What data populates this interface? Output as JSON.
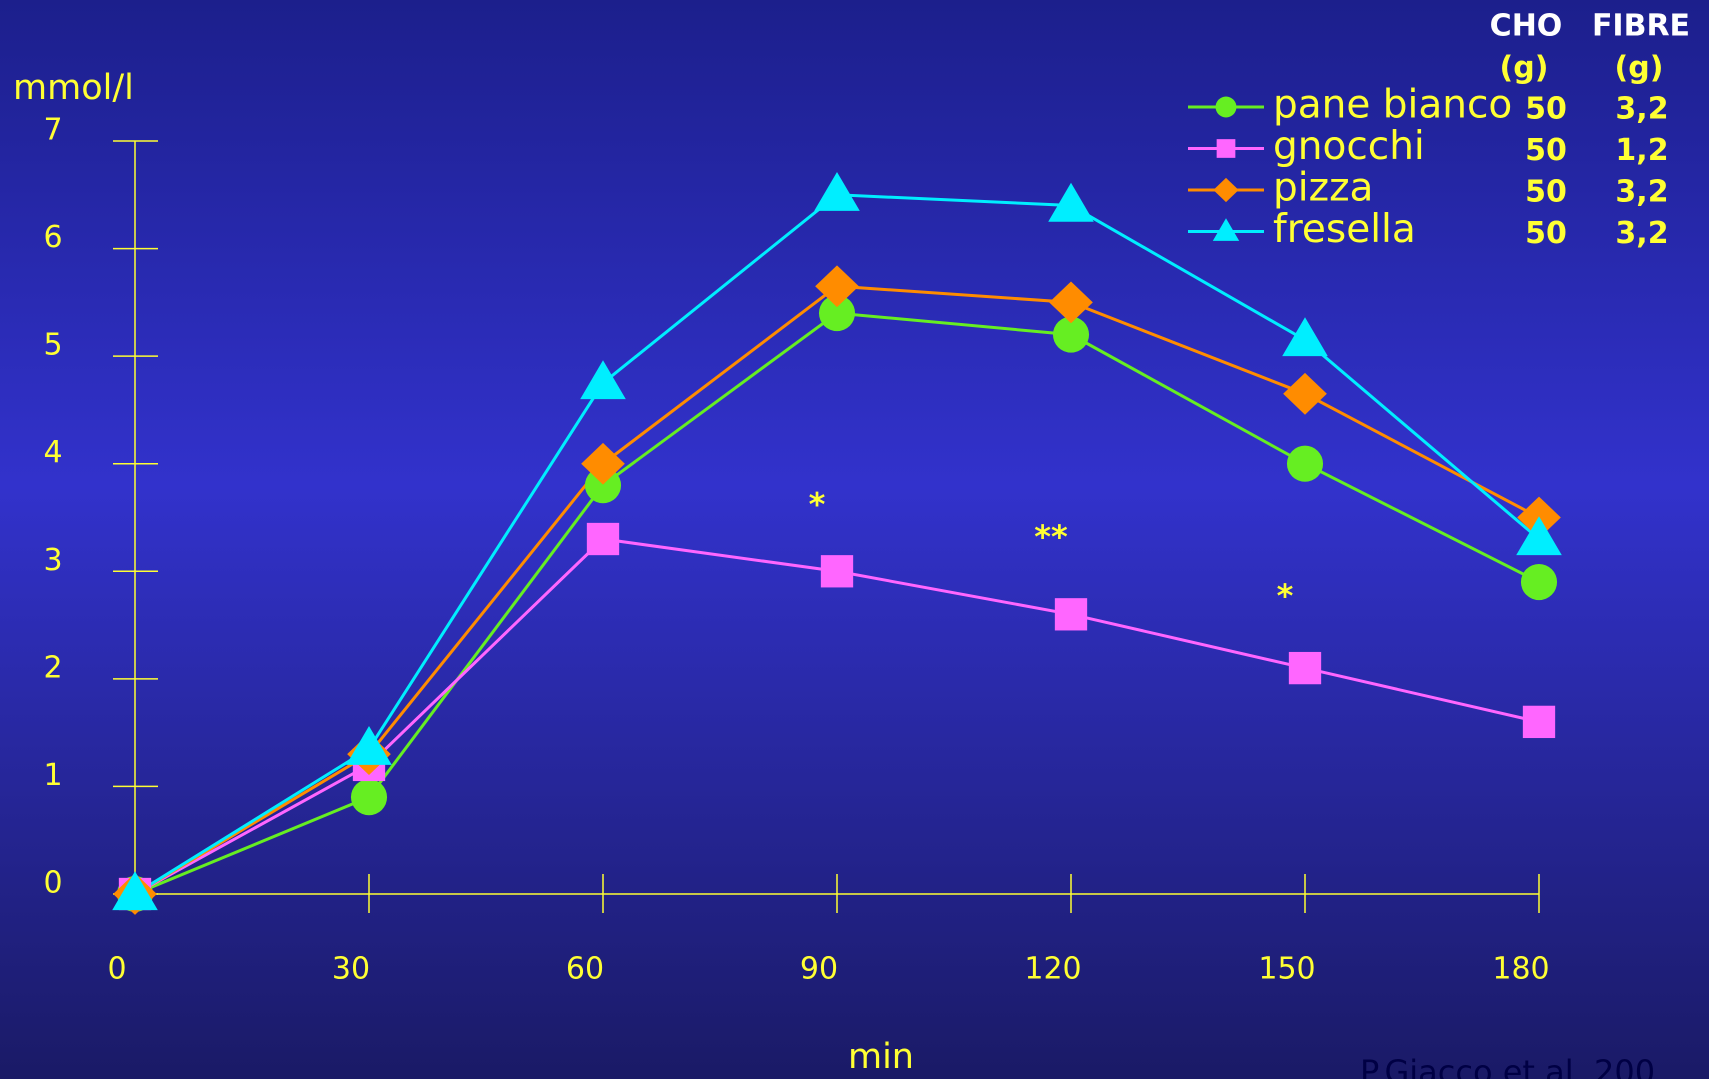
{
  "chart_data": {
    "type": "line",
    "y_label": "mmol/l",
    "x_label": "min",
    "credit": "P.Giacco et al. 200",
    "x": [
      0,
      30,
      60,
      90,
      120,
      150,
      180
    ],
    "xlim": [
      0,
      180
    ],
    "xticks": [
      0,
      30,
      60,
      90,
      120,
      150,
      180
    ],
    "ylim": [
      0,
      7
    ],
    "yticks": [
      0,
      1,
      2,
      3,
      4,
      5,
      6,
      7
    ],
    "series": [
      {
        "name": "pane bianco",
        "color": "#66ee22",
        "marker": "circle",
        "values": [
          0,
          0.9,
          3.8,
          5.4,
          5.2,
          4.0,
          2.9
        ]
      },
      {
        "name": "gnocchi",
        "color": "#ff66ff",
        "marker": "square",
        "values": [
          0,
          1.2,
          3.3,
          3.0,
          2.6,
          2.1,
          1.6
        ]
      },
      {
        "name": "pizza",
        "color": "#ff8c00",
        "marker": "diamond",
        "values": [
          0,
          1.3,
          4.0,
          5.65,
          5.5,
          4.65,
          3.5
        ]
      },
      {
        "name": "fresella",
        "color": "#00eeff",
        "marker": "triangle",
        "values": [
          0,
          1.35,
          4.75,
          6.5,
          6.4,
          5.15,
          3.3
        ]
      }
    ],
    "annotations": [
      {
        "text": "*",
        "x": 90,
        "y": 3.6
      },
      {
        "text": "**",
        "x": 120,
        "y": 3.3
      },
      {
        "text": "*",
        "x": 150,
        "y": 2.75
      }
    ],
    "nutrient_table": {
      "headers": [
        [
          "CHO",
          "(g)"
        ],
        [
          "FIBRE",
          "(g)"
        ]
      ],
      "rows": [
        [
          "50",
          "3,2"
        ],
        [
          "50",
          "1,2"
        ],
        [
          "50",
          "3,2"
        ],
        [
          "50",
          "3,2"
        ]
      ]
    }
  }
}
